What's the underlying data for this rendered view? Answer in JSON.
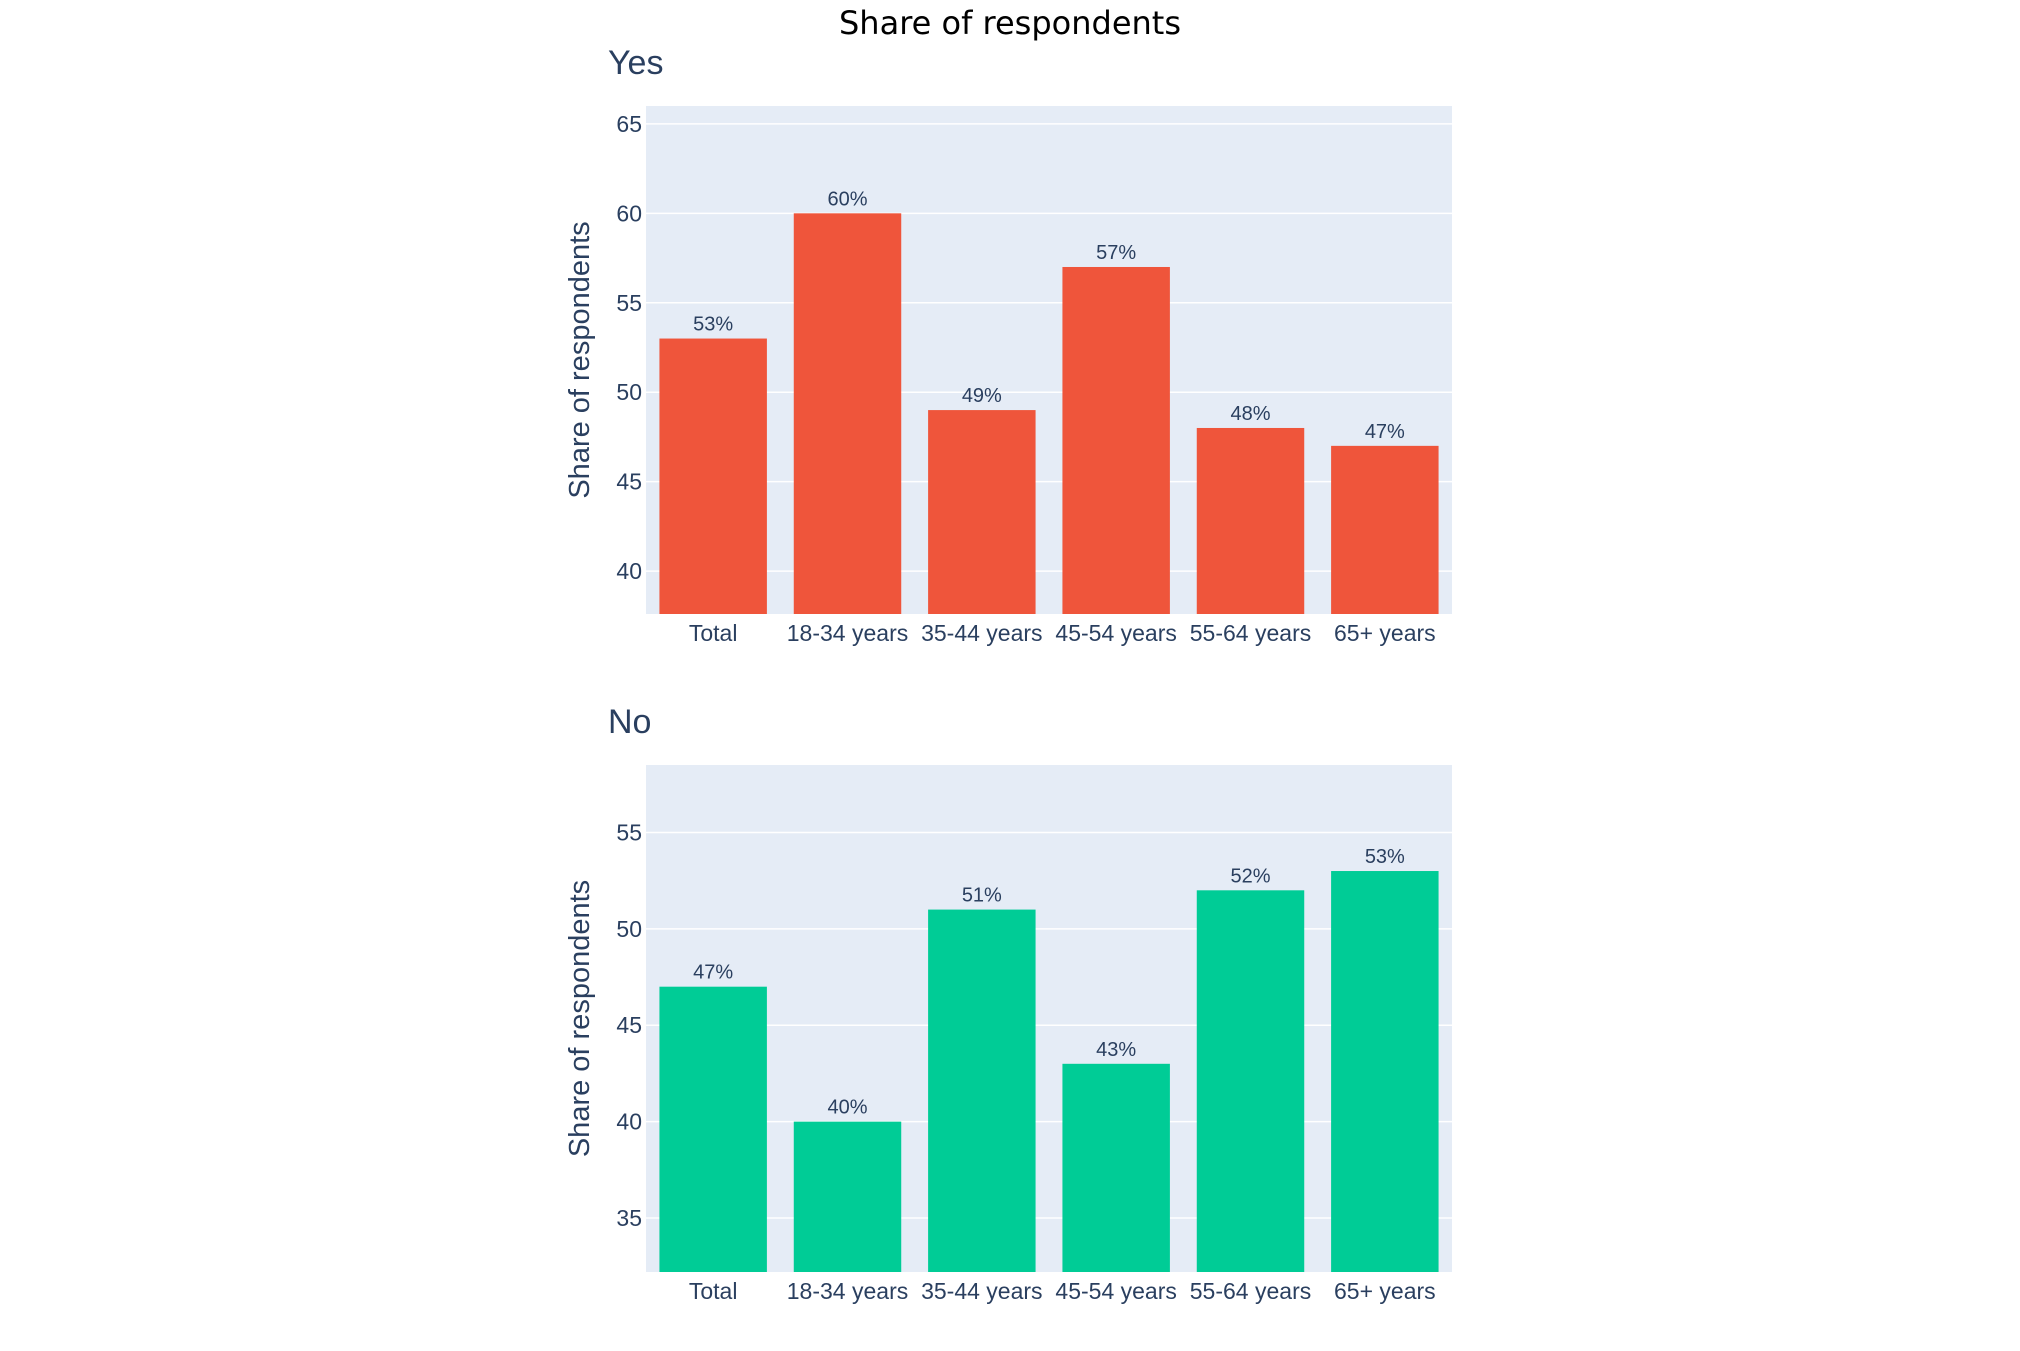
{
  "title": "Share of respondents",
  "chart_data": [
    {
      "type": "bar",
      "subtitle": "Yes",
      "ylabel": "Share of respondents",
      "categories": [
        "Total",
        "18-34 years",
        "35-44 years",
        "45-54 years",
        "55-64 years",
        "65+ years"
      ],
      "values": [
        53,
        60,
        49,
        57,
        48,
        47
      ],
      "data_labels": [
        "53%",
        "60%",
        "49%",
        "57%",
        "48%",
        "47%"
      ],
      "ylim": [
        37.6,
        66
      ],
      "yticks": [
        40,
        45,
        50,
        55,
        60,
        65
      ],
      "color": "#ef553b",
      "background": "#e5ecf6",
      "grid": true
    },
    {
      "type": "bar",
      "subtitle": "No",
      "ylabel": "Share of respondents",
      "categories": [
        "Total",
        "18-34 years",
        "35-44 years",
        "45-54 years",
        "55-64 years",
        "65+ years"
      ],
      "values": [
        47,
        40,
        51,
        43,
        52,
        53
      ],
      "data_labels": [
        "47%",
        "40%",
        "51%",
        "43%",
        "52%",
        "53%"
      ],
      "ylim": [
        32.2,
        58.5
      ],
      "yticks": [
        35,
        40,
        45,
        50,
        55
      ],
      "color": "#00cc96",
      "background": "#e5ecf6",
      "grid": true
    }
  ]
}
